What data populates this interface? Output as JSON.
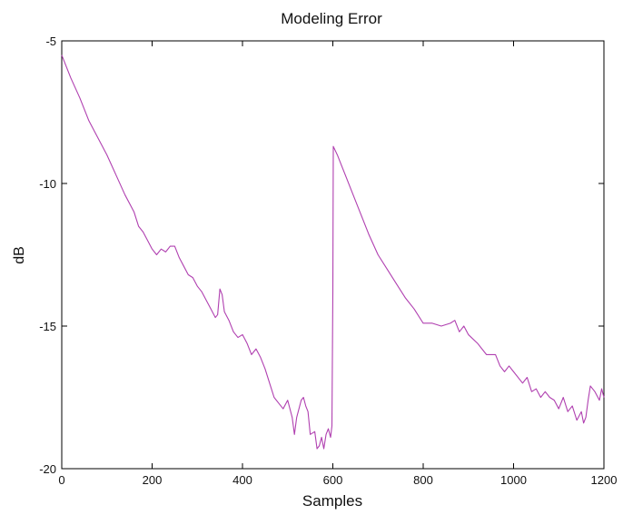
{
  "chart_data": {
    "type": "line",
    "title": "Modeling Error",
    "xlabel": "Samples",
    "ylabel": "dB",
    "xlim": [
      0,
      1200
    ],
    "ylim": [
      -20,
      -5
    ],
    "xticks": [
      0,
      200,
      400,
      600,
      800,
      1000,
      1200
    ],
    "yticks": [
      -5,
      -10,
      -15,
      -20
    ],
    "grid": false,
    "series": [
      {
        "color": "#b040b0",
        "x": [
          0,
          20,
          40,
          60,
          80,
          100,
          120,
          140,
          160,
          170,
          180,
          190,
          200,
          210,
          220,
          230,
          240,
          250,
          260,
          270,
          280,
          290,
          300,
          310,
          320,
          330,
          340,
          345,
          350,
          355,
          360,
          370,
          380,
          390,
          400,
          410,
          420,
          430,
          440,
          450,
          460,
          470,
          480,
          490,
          500,
          510,
          515,
          520,
          530,
          535,
          540,
          545,
          550,
          560,
          565,
          570,
          575,
          580,
          585,
          590,
          595,
          598,
          600,
          601,
          610,
          620,
          640,
          660,
          680,
          700,
          720,
          740,
          760,
          780,
          800,
          820,
          840,
          860,
          870,
          880,
          890,
          900,
          920,
          940,
          960,
          970,
          980,
          990,
          1000,
          1020,
          1030,
          1040,
          1050,
          1060,
          1070,
          1080,
          1090,
          1100,
          1110,
          1120,
          1130,
          1140,
          1150,
          1155,
          1160,
          1165,
          1170,
          1180,
          1190,
          1195,
          1200
        ],
        "y": [
          -5.5,
          -6.3,
          -7.0,
          -7.8,
          -8.4,
          -9.0,
          -9.7,
          -10.4,
          -11.0,
          -11.5,
          -11.7,
          -12.0,
          -12.3,
          -12.5,
          -12.3,
          -12.4,
          -12.2,
          -12.2,
          -12.6,
          -12.9,
          -13.2,
          -13.3,
          -13.6,
          -13.8,
          -14.1,
          -14.4,
          -14.7,
          -14.6,
          -13.7,
          -13.9,
          -14.5,
          -14.8,
          -15.2,
          -15.4,
          -15.3,
          -15.6,
          -16.0,
          -15.8,
          -16.1,
          -16.5,
          -17.0,
          -17.5,
          -17.7,
          -17.9,
          -17.6,
          -18.2,
          -18.8,
          -18.2,
          -17.6,
          -17.5,
          -17.8,
          -18.0,
          -18.8,
          -18.7,
          -19.3,
          -19.2,
          -18.9,
          -19.3,
          -18.8,
          -18.6,
          -18.9,
          -18.5,
          -13.8,
          -8.7,
          -9.0,
          -9.4,
          -10.2,
          -11.0,
          -11.8,
          -12.5,
          -13.0,
          -13.5,
          -14.0,
          -14.4,
          -14.9,
          -14.9,
          -15.0,
          -14.9,
          -14.8,
          -15.2,
          -15.0,
          -15.3,
          -15.6,
          -16.0,
          -16.0,
          -16.4,
          -16.6,
          -16.4,
          -16.6,
          -17.0,
          -16.8,
          -17.3,
          -17.2,
          -17.5,
          -17.3,
          -17.5,
          -17.6,
          -17.9,
          -17.5,
          -18.0,
          -17.8,
          -18.3,
          -18.0,
          -18.4,
          -18.2,
          -17.6,
          -17.1,
          -17.3,
          -17.6,
          -17.2,
          -17.5
        ]
      }
    ]
  }
}
